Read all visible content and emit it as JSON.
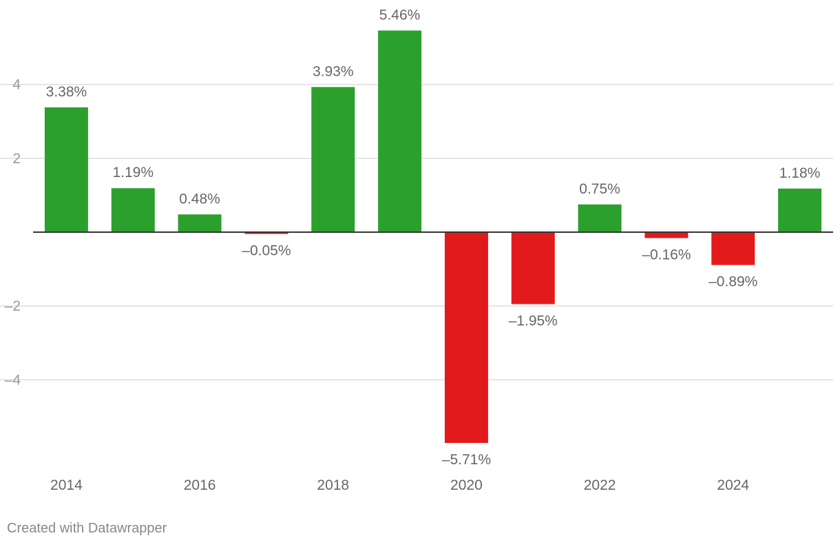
{
  "chart_data": {
    "type": "bar",
    "categories": [
      "2014",
      "2015",
      "2016",
      "2017",
      "2018",
      "2019",
      "2020",
      "2021",
      "2022",
      "2023",
      "2024",
      "2025"
    ],
    "values": [
      3.38,
      1.19,
      0.48,
      -0.05,
      3.93,
      5.46,
      -5.71,
      -1.95,
      0.75,
      -0.16,
      -0.89,
      1.18
    ],
    "data_labels": [
      "3.38%",
      "1.19%",
      "0.48%",
      "–0.05%",
      "3.93%",
      "5.46%",
      "–5.71%",
      "–1.95%",
      "0.75%",
      "–0.16%",
      "–0.89%",
      "1.18%"
    ],
    "y_ticks": [
      4,
      2,
      -2,
      -4
    ],
    "y_tick_labels": [
      "4",
      "2",
      "–2",
      "–4"
    ],
    "x_tick_labels": [
      "2014",
      "2016",
      "2018",
      "2020",
      "2022",
      "2024"
    ],
    "ylim": [
      -6.3,
      6.0
    ],
    "grid": true,
    "colors": {
      "positive": "#2ca02c",
      "negative": "#e31a1c",
      "grid": "#dddddd",
      "zero_line": "#333333",
      "label": "#666666",
      "tick_label": "#999999"
    }
  },
  "footer": {
    "credit": "Created with Datawrapper"
  }
}
